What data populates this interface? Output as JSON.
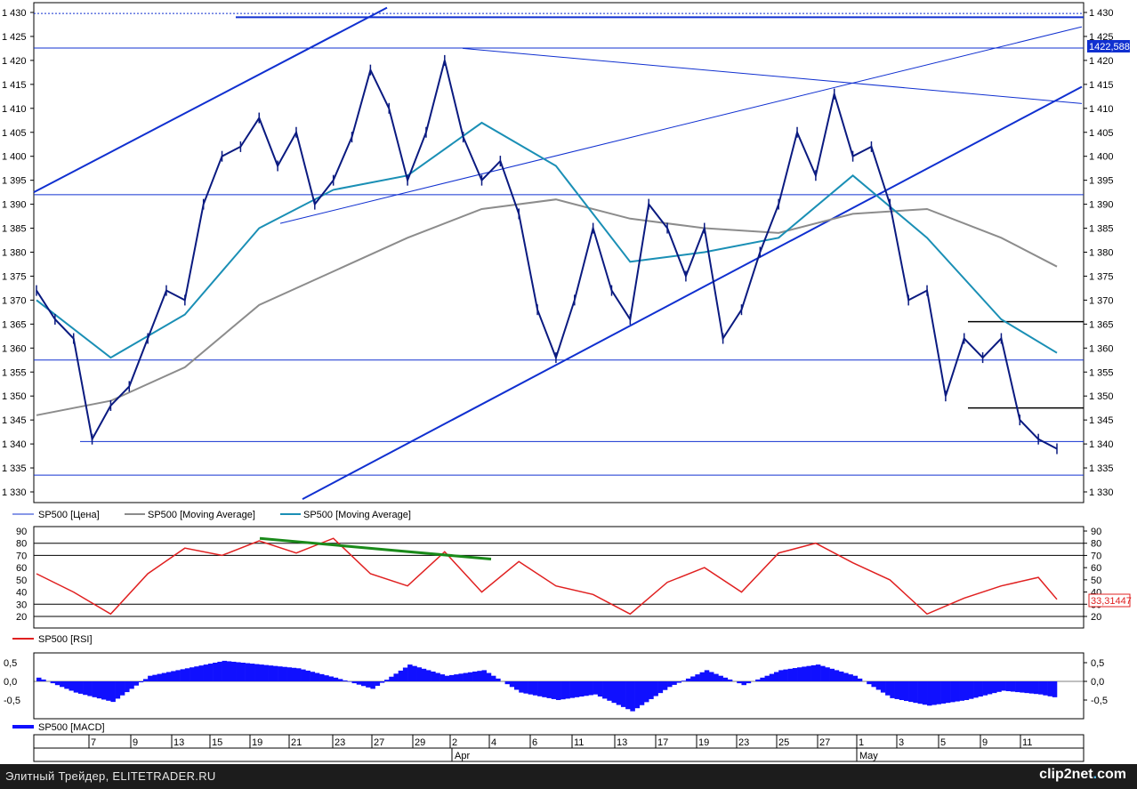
{
  "colors": {
    "price": "#0a1a80",
    "price_line": "#1030d0",
    "ma_short": "#1a8fb5",
    "ma_long": "#8c8c8c",
    "rsi": "#e02020",
    "rsi_trend": "#1a8a1a",
    "macd": "#1010ff",
    "level_black": "#000000"
  },
  "legend": {
    "price": "SP500 [Цена]",
    "ma1": "SP500 [Moving Average]",
    "ma2": "SP500 [Moving Average]",
    "rsi": "SP500 [RSI]",
    "macd": "SP500 [MACD]"
  },
  "price_labels": {
    "current": "1422,588"
  },
  "rsi_labels": {
    "current": "33,31447"
  },
  "footer": {
    "text": "Элитный Трейдер, ELITETRADER.RU",
    "logo_main": "clip2net",
    "logo_dot": ".",
    "logo_tld": "com"
  },
  "chart_data": [
    {
      "type": "line",
      "subtype": "candlestick",
      "title": "",
      "ylim": [
        1328,
        1431
      ],
      "ytick_labels": [
        "1 430",
        "1 425",
        "1 420",
        "1 415",
        "1 410",
        "1 405",
        "1 400",
        "1 395",
        "1 390",
        "1 385",
        "1 380",
        "1 375",
        "1 370",
        "1 365",
        "1 360",
        "1 355",
        "1 350",
        "1 345",
        "1 340",
        "1 335",
        "1 330"
      ],
      "yticks": [
        1430,
        1425,
        1420,
        1415,
        1410,
        1405,
        1400,
        1395,
        1390,
        1385,
        1380,
        1375,
        1370,
        1365,
        1360,
        1355,
        1350,
        1345,
        1340,
        1335,
        1330
      ],
      "series": [
        {
          "name": "SP500 [Цена]",
          "x": [
            0,
            1,
            2,
            3,
            4,
            5,
            6,
            7,
            8,
            9,
            10,
            11,
            12,
            13,
            14,
            15,
            16,
            17,
            18,
            19,
            20,
            21,
            22,
            23,
            24,
            25,
            26,
            27,
            28,
            29,
            30,
            31,
            32,
            33,
            34,
            35,
            36,
            37,
            38,
            39,
            40,
            41,
            42,
            43,
            44,
            45,
            46,
            47,
            48,
            49,
            50,
            51,
            52,
            53,
            54,
            55
          ],
          "values": [
            1372,
            1366,
            1362,
            1341,
            1348,
            1352,
            1362,
            1372,
            1370,
            1390,
            1400,
            1402,
            1408,
            1398,
            1405,
            1390,
            1395,
            1404,
            1418,
            1410,
            1395,
            1405,
            1420,
            1404,
            1395,
            1399,
            1388,
            1368,
            1358,
            1370,
            1385,
            1372,
            1366,
            1390,
            1385,
            1375,
            1385,
            1362,
            1368,
            1380,
            1390,
            1405,
            1396,
            1413,
            1400,
            1402,
            1390,
            1370,
            1372,
            1350,
            1362,
            1358,
            1362,
            1345,
            1341,
            1339
          ]
        },
        {
          "name": "SP500 [Moving Average]",
          "x": [
            0,
            4,
            8,
            12,
            16,
            20,
            24,
            28,
            32,
            36,
            40,
            44,
            48,
            52,
            55
          ],
          "values": [
            1370,
            1358,
            1367,
            1385,
            1393,
            1396,
            1407,
            1398,
            1378,
            1380,
            1383,
            1396,
            1383,
            1366,
            1359
          ]
        },
        {
          "name": "SP500 [Moving Average]",
          "x": [
            0,
            4,
            8,
            12,
            16,
            20,
            24,
            28,
            32,
            36,
            40,
            44,
            48,
            52,
            55
          ],
          "values": [
            1346,
            1349,
            1356,
            1369,
            1376,
            1383,
            1389,
            1391,
            1387,
            1385,
            1384,
            1388,
            1389,
            1383,
            1377
          ]
        }
      ],
      "horizontal_levels": [
        1429,
        1422.588,
        1392,
        1357.5,
        1340.5,
        1333.5
      ],
      "levels_black": [
        1365.5,
        1347.5
      ],
      "x_tick_labels": [
        "7",
        "9",
        "13",
        "15",
        "19",
        "21",
        "23",
        "27",
        "29",
        "2",
        "4",
        "6",
        "11",
        "13",
        "17",
        "19",
        "23",
        "25",
        "27",
        "1",
        "3",
        "5",
        "9",
        "11"
      ],
      "month_labels": [
        "Apr",
        "May"
      ]
    },
    {
      "type": "line",
      "title": "",
      "ylim": [
        15,
        92
      ],
      "ytick_labels": [
        "90",
        "80",
        "70",
        "60",
        "50",
        "40",
        "30",
        "20"
      ],
      "yticks": [
        90,
        80,
        70,
        60,
        50,
        40,
        30,
        20
      ],
      "series": [
        {
          "name": "SP500 [RSI]",
          "x": [
            0,
            2,
            4,
            6,
            8,
            10,
            12,
            14,
            16,
            18,
            20,
            22,
            24,
            26,
            28,
            30,
            32,
            34,
            36,
            38,
            40,
            42,
            44,
            46,
            48,
            50,
            52,
            54,
            55
          ],
          "values": [
            55,
            40,
            22,
            55,
            76,
            70,
            82,
            72,
            84,
            55,
            45,
            73,
            40,
            65,
            45,
            38,
            22,
            48,
            60,
            40,
            72,
            80,
            64,
            50,
            22,
            35,
            45,
            52,
            34
          ]
        }
      ],
      "horizontal_levels": [
        80,
        70,
        30,
        20
      ],
      "current_value": 33.31447
    },
    {
      "type": "bar",
      "title": "",
      "ylim": [
        -0.9,
        0.85
      ],
      "ytick_labels": [
        "0,5",
        "0,0",
        "-0,5"
      ],
      "yticks": [
        0.5,
        0.0,
        -0.5
      ],
      "series": [
        {
          "name": "SP500 [MACD]",
          "x": [
            0,
            2,
            4,
            6,
            8,
            10,
            12,
            14,
            16,
            18,
            20,
            22,
            24,
            26,
            28,
            30,
            32,
            34,
            36,
            38,
            40,
            42,
            44,
            46,
            48,
            50,
            52,
            54,
            55
          ],
          "values": [
            0.1,
            -0.3,
            -0.55,
            0.15,
            0.35,
            0.55,
            0.45,
            0.35,
            0.1,
            -0.2,
            0.45,
            0.15,
            0.3,
            -0.3,
            -0.5,
            -0.35,
            -0.8,
            -0.15,
            0.3,
            -0.1,
            0.3,
            0.45,
            0.15,
            -0.45,
            -0.65,
            -0.5,
            -0.25,
            -0.35,
            -0.45
          ]
        }
      ]
    }
  ]
}
